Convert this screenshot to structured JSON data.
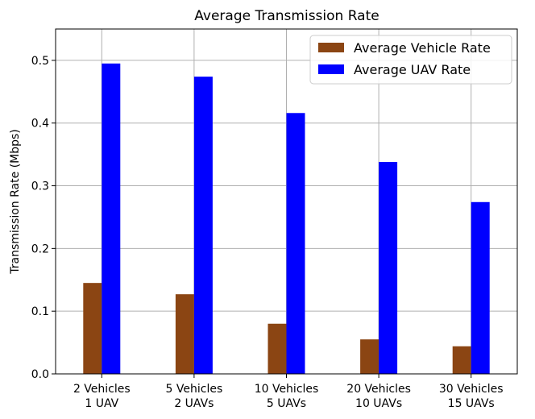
{
  "chart_data": {
    "type": "bar",
    "title": "Average Transmission Rate",
    "xlabel": "",
    "ylabel": "Transmission Rate (Mbps)",
    "ylim": [
      0,
      0.55
    ],
    "yticks": [
      0.0,
      0.1,
      0.2,
      0.3,
      0.4,
      0.5
    ],
    "ytick_labels": [
      "0.0",
      "0.1",
      "0.2",
      "0.3",
      "0.4",
      "0.5"
    ],
    "grid": true,
    "legend_position": "top-right",
    "categories": [
      [
        "2 Vehicles",
        "1 UAV"
      ],
      [
        "5 Vehicles",
        "2 UAVs"
      ],
      [
        "10 Vehicles",
        "5 UAVs"
      ],
      [
        "20 Vehicles",
        "10 UAVs"
      ],
      [
        "30 Vehicles",
        "15 UAVs"
      ]
    ],
    "series": [
      {
        "name": "Average Vehicle Rate",
        "color": "#8b4513",
        "values": [
          0.145,
          0.127,
          0.08,
          0.055,
          0.044
        ]
      },
      {
        "name": "Average UAV Rate",
        "color": "#0000ff",
        "values": [
          0.495,
          0.474,
          0.416,
          0.338,
          0.274
        ]
      }
    ]
  }
}
